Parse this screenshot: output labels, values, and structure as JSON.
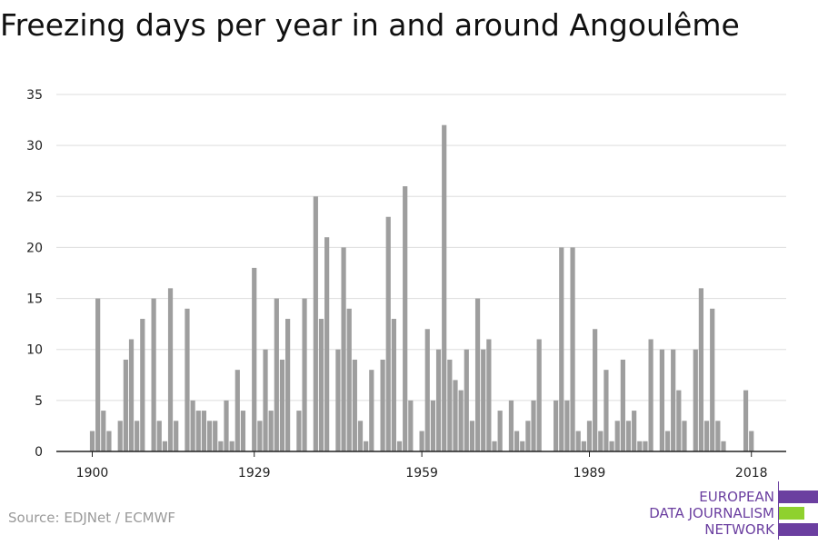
{
  "title": "Freezing days per year in and around Angoulême",
  "source": "Source: EDJNet / ECMWF",
  "logo": {
    "line1": "EUROPEAN",
    "line2": "DATA JOURNALISM",
    "line3": "NETWORK",
    "purple": "#6b3fa0",
    "green": "#8fd12e"
  },
  "colors": {
    "bar": "#9e9e9e",
    "grid": "#dddddd",
    "axis": "#222222"
  },
  "chart_data": {
    "type": "bar",
    "title": "Freezing days per year in and around Angoulême",
    "xlabel": "",
    "ylabel": "",
    "x_start": 1900,
    "x_end": 2018,
    "x_ticks": [
      1900,
      1929,
      1959,
      1989,
      2018
    ],
    "y_ticks": [
      0,
      5,
      10,
      15,
      20,
      25,
      30,
      35
    ],
    "ylim": [
      0,
      35
    ],
    "grid": true,
    "values": [
      2,
      15,
      4,
      2,
      0,
      3,
      9,
      11,
      3,
      13,
      0,
      15,
      3,
      1,
      16,
      3,
      0,
      14,
      5,
      4,
      4,
      3,
      3,
      1,
      5,
      1,
      8,
      4,
      0,
      18,
      3,
      10,
      4,
      15,
      9,
      13,
      0,
      4,
      15,
      0,
      25,
      13,
      21,
      0,
      10,
      20,
      14,
      9,
      3,
      1,
      8,
      0,
      9,
      23,
      13,
      1,
      26,
      5,
      0,
      2,
      12,
      5,
      10,
      32,
      9,
      7,
      6,
      10,
      3,
      15,
      10,
      11,
      1,
      4,
      0,
      5,
      2,
      1,
      3,
      5,
      11,
      0,
      0,
      5,
      20,
      5,
      20,
      2,
      1,
      3,
      12,
      2,
      8,
      1,
      3,
      9,
      3,
      4,
      1,
      1,
      11,
      0,
      10,
      2,
      10,
      6,
      3,
      0,
      10,
      16,
      3,
      14,
      3,
      1,
      0,
      0,
      0,
      6,
      2
    ]
  }
}
